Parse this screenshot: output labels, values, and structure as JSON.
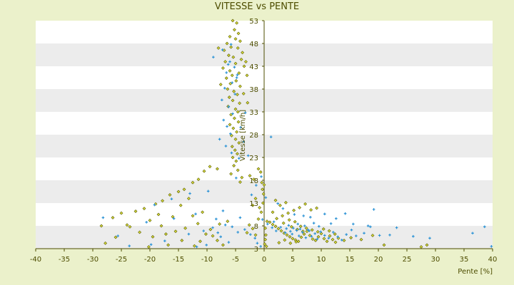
{
  "colors": {
    "background": "#ebf1cb",
    "plot_band_light": "#ffffff",
    "plot_band_dark": "#ececec",
    "axis": "#4d4d00",
    "series_a": "#d7dc3c",
    "series_a_edge": "#5a5a00",
    "series_b": "#2e94d6"
  },
  "chart_data": {
    "type": "scatter",
    "title": "VITESSE vs PENTE",
    "xlabel": "Pente [%]",
    "ylabel": "Vitesse [km/h]",
    "xlim": [
      -40,
      40
    ],
    "ylim": [
      3,
      53
    ],
    "xticks": [
      -40,
      -35,
      -30,
      -25,
      -20,
      -15,
      -10,
      -5,
      0,
      5,
      10,
      15,
      20,
      25,
      30,
      35,
      40
    ],
    "yticks": [
      3,
      8,
      13,
      18,
      23,
      28,
      33,
      38,
      43,
      48,
      53
    ],
    "grid": "alternating horizontal bands",
    "legend": "none",
    "series": [
      {
        "marker": "diamond",
        "points": [
          [
            -5.5,
            53
          ],
          [
            -4.8,
            52.5
          ],
          [
            -5.2,
            51
          ],
          [
            -4.5,
            50.2
          ],
          [
            -6,
            49.5
          ],
          [
            -5,
            49
          ],
          [
            -4.2,
            48.5
          ],
          [
            -6.5,
            48
          ],
          [
            -5.8,
            47.2
          ],
          [
            -4.6,
            47
          ],
          [
            -7,
            46.5
          ],
          [
            -3.8,
            46
          ],
          [
            -6.2,
            45.4
          ],
          [
            -5.4,
            45
          ],
          [
            -4,
            44.5
          ],
          [
            -6.8,
            44
          ],
          [
            -5,
            43.6
          ],
          [
            -3.5,
            43
          ],
          [
            -7.2,
            42.6
          ],
          [
            -6,
            42
          ],
          [
            -4.4,
            41.5
          ],
          [
            -5.6,
            41
          ],
          [
            -6.6,
            40.4
          ],
          [
            -4.9,
            39.8
          ],
          [
            -5.9,
            39.2
          ],
          [
            -4.2,
            38.6
          ],
          [
            -6.4,
            38
          ],
          [
            -5.3,
            37.5
          ],
          [
            -4.7,
            36.8
          ],
          [
            -6.1,
            36.2
          ],
          [
            -5.5,
            35.5
          ],
          [
            -4.3,
            34.9
          ],
          [
            -6.3,
            34.2
          ],
          [
            -5,
            33.6
          ],
          [
            -4.6,
            33
          ],
          [
            -5.8,
            32.4
          ],
          [
            -5.2,
            31.6
          ],
          [
            -4.5,
            30.8
          ],
          [
            -6,
            30.2
          ],
          [
            -5.4,
            29.4
          ],
          [
            -4.8,
            28.6
          ],
          [
            -5.7,
            27.8
          ],
          [
            -5,
            27
          ],
          [
            -4.4,
            26.2
          ],
          [
            -5.6,
            25.4
          ],
          [
            -5.1,
            24.6
          ],
          [
            -4.7,
            23.8
          ],
          [
            -5.5,
            23
          ],
          [
            -4.9,
            22.2
          ],
          [
            -5.3,
            21.2
          ],
          [
            -4.6,
            20.2
          ],
          [
            -5.8,
            19.4
          ],
          [
            -3.9,
            18.6
          ],
          [
            -4.2,
            17.6
          ],
          [
            -2.5,
            19
          ],
          [
            -1.8,
            18.2
          ],
          [
            -1,
            20.5
          ],
          [
            -0.6,
            19.8
          ],
          [
            -0.4,
            17.5
          ],
          [
            -8,
            47
          ],
          [
            -3.2,
            44
          ],
          [
            -3,
            41
          ],
          [
            -3.6,
            37
          ],
          [
            -2.9,
            35
          ],
          [
            -7.6,
            39
          ],
          [
            -8.2,
            20.5
          ],
          [
            -9.5,
            21
          ],
          [
            -10.5,
            20
          ],
          [
            -11.5,
            18.2
          ],
          [
            -12.5,
            17.5
          ],
          [
            -14,
            16
          ],
          [
            -15,
            15.5
          ],
          [
            -16.5,
            14.8
          ],
          [
            -13.2,
            14
          ],
          [
            -17.8,
            13.5
          ],
          [
            -19,
            12.8
          ],
          [
            -14.6,
            12.5
          ],
          [
            -21,
            11.8
          ],
          [
            -22.5,
            11.2
          ],
          [
            -25,
            10.8
          ],
          [
            -26.5,
            9.8
          ],
          [
            -28.5,
            8
          ],
          [
            -24,
            8.2
          ],
          [
            -20,
            9.2
          ],
          [
            -18.5,
            10.5
          ],
          [
            -16,
            10
          ],
          [
            -12.5,
            10.2
          ],
          [
            -10.8,
            11
          ],
          [
            -11.6,
            8.5
          ],
          [
            -13.8,
            7.5
          ],
          [
            -15.5,
            6.8
          ],
          [
            -17.2,
            6.2
          ],
          [
            -19.5,
            5.6
          ],
          [
            -21.8,
            6.6
          ],
          [
            -23.5,
            7.8
          ],
          [
            -26,
            5.5
          ],
          [
            -27.8,
            4.2
          ],
          [
            -9,
            5.8
          ],
          [
            -8.2,
            4.8
          ],
          [
            -7.2,
            3.8
          ],
          [
            -6.4,
            9
          ],
          [
            -7.8,
            8.4
          ],
          [
            -9.4,
            7.2
          ],
          [
            -10.2,
            6.2
          ],
          [
            -11.2,
            4.6
          ],
          [
            -12.2,
            3.6
          ],
          [
            -14.4,
            4.8
          ],
          [
            -16.8,
            3.8
          ],
          [
            -20.2,
            3.4
          ],
          [
            -18,
            8
          ],
          [
            -3,
            6.5
          ],
          [
            -2.6,
            8.2
          ],
          [
            -2,
            7.4
          ],
          [
            -1.5,
            6
          ],
          [
            -1,
            9.5
          ],
          [
            -0.5,
            11
          ],
          [
            -0.2,
            13
          ],
          [
            -0.1,
            15
          ],
          [
            0,
            17
          ],
          [
            -0.3,
            16
          ],
          [
            0.1,
            4
          ],
          [
            0.2,
            5
          ],
          [
            0.3,
            6
          ],
          [
            0.2,
            7.5
          ],
          [
            0.4,
            3.5
          ],
          [
            0.5,
            9
          ],
          [
            1,
            8.8
          ],
          [
            1.5,
            8.3
          ],
          [
            2,
            7.9
          ],
          [
            2.5,
            7.4
          ],
          [
            3,
            6.9
          ],
          [
            3.5,
            6.4
          ],
          [
            4,
            6
          ],
          [
            4.5,
            5.6
          ],
          [
            5,
            5.2
          ],
          [
            5.5,
            4.9
          ],
          [
            6,
            4.6
          ],
          [
            6.5,
            5.5
          ],
          [
            7,
            6.2
          ],
          [
            7.5,
            6.8
          ],
          [
            8,
            5.9
          ],
          [
            8.5,
            5.1
          ],
          [
            9,
            4.8
          ],
          [
            9.5,
            5.6
          ],
          [
            10,
            6.3
          ],
          [
            10.5,
            5.2
          ],
          [
            11,
            4.6
          ],
          [
            11.5,
            5.8
          ],
          [
            12,
            5
          ],
          [
            12.5,
            4.4
          ],
          [
            13,
            5.3
          ],
          [
            14,
            4.8
          ],
          [
            15.2,
            5.4
          ],
          [
            2.2,
            9.6
          ],
          [
            3.2,
            10.2
          ],
          [
            4.2,
            10.8
          ],
          [
            5.2,
            11.4
          ],
          [
            6.2,
            12
          ],
          [
            2.8,
            12.5
          ],
          [
            3.8,
            13.1
          ],
          [
            1.5,
            11
          ],
          [
            2,
            13.6
          ],
          [
            7.2,
            12.8
          ],
          [
            8.2,
            11.5
          ],
          [
            9.2,
            11.9
          ],
          [
            4.8,
            7.8
          ],
          [
            5.8,
            7.2
          ],
          [
            6.8,
            6.8
          ],
          [
            3.4,
            8.6
          ],
          [
            4.4,
            9.3
          ],
          [
            5.4,
            8.9
          ],
          [
            6.4,
            7.9
          ],
          [
            7.4,
            7.5
          ],
          [
            8.4,
            7.1
          ],
          [
            9.4,
            6.7
          ],
          [
            10.4,
            7.3
          ],
          [
            11.4,
            6.9
          ],
          [
            12.4,
            6.2
          ],
          [
            2.6,
            4.3
          ],
          [
            3.6,
            4.9
          ],
          [
            4.6,
            4.2
          ],
          [
            5.6,
            4.5
          ],
          [
            21,
            3.8
          ],
          [
            27.5,
            3.4
          ],
          [
            28.5,
            3.8
          ],
          [
            17,
            5
          ],
          [
            19,
            5.9
          ],
          [
            -1.5,
            14
          ],
          [
            -2,
            12.5
          ],
          [
            -0.8,
            12
          ]
        ]
      },
      {
        "marker": "plus",
        "points": [
          [
            -6,
            44
          ],
          [
            -5.2,
            42.8
          ],
          [
            -6.6,
            41.6
          ],
          [
            -4.8,
            40.5
          ],
          [
            -5.6,
            39.4
          ],
          [
            -6.9,
            38.2
          ],
          [
            -5.1,
            36.9
          ],
          [
            -7.4,
            35.6
          ],
          [
            -6.2,
            34.1
          ],
          [
            -5.5,
            32.6
          ],
          [
            -7.1,
            31.2
          ],
          [
            -6.5,
            29.8
          ],
          [
            -5.9,
            28.2
          ],
          [
            -7.8,
            27
          ],
          [
            -6.7,
            25.5
          ],
          [
            -5.7,
            24
          ],
          [
            -4.4,
            22.8
          ],
          [
            -3.6,
            26.5
          ],
          [
            -4.1,
            29.6
          ],
          [
            -3.3,
            32.8
          ],
          [
            -8.9,
            45
          ],
          [
            -7.3,
            46.6
          ],
          [
            -5.8,
            47.8
          ],
          [
            -6.3,
            43.4
          ],
          [
            -4.7,
            41.1
          ],
          [
            1.2,
            27.5
          ],
          [
            -2.8,
            23.4
          ],
          [
            -4.9,
            18.5
          ],
          [
            -9.8,
            15.6
          ],
          [
            -13,
            15.1
          ],
          [
            -16.2,
            13.9
          ],
          [
            -19.2,
            12.6
          ],
          [
            -12,
            10.6
          ],
          [
            -15.8,
            9.6
          ],
          [
            -20.6,
            8.8
          ],
          [
            -28.2,
            9.8
          ],
          [
            -25.6,
            5.8
          ],
          [
            -23.6,
            3.6
          ],
          [
            -19.8,
            3.9
          ],
          [
            -17.4,
            4.7
          ],
          [
            -13.2,
            6.2
          ],
          [
            -10.6,
            6.9
          ],
          [
            -9,
            7.6
          ],
          [
            -7.6,
            5.6
          ],
          [
            -6.2,
            4.4
          ],
          [
            -4.6,
            6.6
          ],
          [
            -3.4,
            7.2
          ],
          [
            -2.4,
            6.1
          ],
          [
            -1.6,
            5.3
          ],
          [
            -8.4,
            9.5
          ],
          [
            -6.8,
            8.2
          ],
          [
            -5.6,
            7.8
          ],
          [
            -4.2,
            9.8
          ],
          [
            -10.1,
            3.8
          ],
          [
            -11.8,
            3.4
          ],
          [
            -1.2,
            4.2
          ],
          [
            -0.6,
            3.5
          ],
          [
            -0.3,
            9.4
          ],
          [
            0.6,
            8.4
          ],
          [
            1.4,
            7.6
          ],
          [
            2.1,
            6.9
          ],
          [
            2.9,
            7.7
          ],
          [
            3.7,
            6.5
          ],
          [
            4.3,
            8.1
          ],
          [
            4.9,
            6.2
          ],
          [
            5.7,
            7
          ],
          [
            6.1,
            5.8
          ],
          [
            6.7,
            6.6
          ],
          [
            7.3,
            5.4
          ],
          [
            7.9,
            6.9
          ],
          [
            8.3,
            5.7
          ],
          [
            8.9,
            6.3
          ],
          [
            9.3,
            5.1
          ],
          [
            9.9,
            6.7
          ],
          [
            10.6,
            5.9
          ],
          [
            11.3,
            5.3
          ],
          [
            12.1,
            6.6
          ],
          [
            12.9,
            5.6
          ],
          [
            13.6,
            4.9
          ],
          [
            14.4,
            6.1
          ],
          [
            15.3,
            7.1
          ],
          [
            16.1,
            5.8
          ],
          [
            17.5,
            6.4
          ],
          [
            18.6,
            7.8
          ],
          [
            20.2,
            5.9
          ],
          [
            22,
            6
          ],
          [
            23.2,
            7.6
          ],
          [
            26.1,
            5.7
          ],
          [
            29,
            5.3
          ],
          [
            36.5,
            6.4
          ],
          [
            38.6,
            7.8
          ],
          [
            39.8,
            3.5
          ],
          [
            19.2,
            11.6
          ],
          [
            10.6,
            10.6
          ],
          [
            8.1,
            9.9
          ],
          [
            6.9,
            10.2
          ],
          [
            5.3,
            10.5
          ],
          [
            3.3,
            11.8
          ],
          [
            2.4,
            12.9
          ],
          [
            1.7,
            8.9
          ],
          [
            3.9,
            7.4
          ],
          [
            4.6,
            6.8
          ],
          [
            5.1,
            7.5
          ],
          [
            5.9,
            8.4
          ],
          [
            6.3,
            7.3
          ],
          [
            7.1,
            8
          ],
          [
            7.7,
            7.1
          ],
          [
            8.7,
            8.6
          ],
          [
            9.6,
            7.9
          ],
          [
            11.7,
            8.5
          ],
          [
            12.6,
            9.6
          ],
          [
            14.2,
            10.7
          ],
          [
            15.6,
            8.4
          ],
          [
            18.2,
            8
          ],
          [
            -8.1,
            6.5
          ],
          [
            -7.2,
            11.3
          ],
          [
            -2.2,
            14.8
          ],
          [
            -1.4,
            16.9
          ],
          [
            -0.5,
            18.8
          ],
          [
            0.3,
            14.2
          ]
        ]
      }
    ]
  }
}
